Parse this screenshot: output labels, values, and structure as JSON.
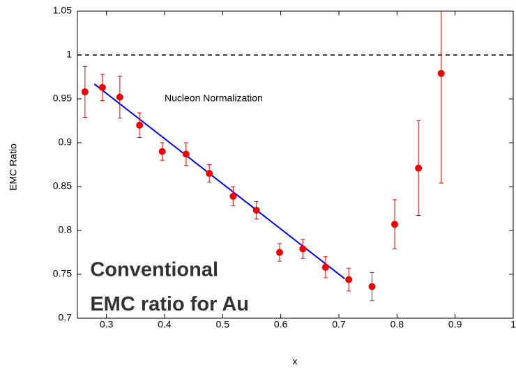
{
  "chart_data": {
    "type": "scatter",
    "x_label": "x",
    "y_label": "EMC Ratio",
    "x": [
      0.263,
      0.293,
      0.323,
      0.357,
      0.396,
      0.437,
      0.477,
      0.518,
      0.558,
      0.598,
      0.638,
      0.677,
      0.717,
      0.757,
      0.796,
      0.837,
      0.876
    ],
    "values": [
      0.958,
      0.963,
      0.952,
      0.92,
      0.89,
      0.887,
      0.865,
      0.839,
      0.823,
      0.775,
      0.779,
      0.758,
      0.744,
      0.736,
      0.807,
      0.871,
      0.979
    ],
    "errors": [
      0.029,
      0.015,
      0.024,
      0.014,
      0.01,
      0.013,
      0.01,
      0.011,
      0.01,
      0.01,
      0.011,
      0.012,
      0.013,
      0.016,
      0.028,
      0.054,
      0.125
    ],
    "color": "#ee0000",
    "fit": {
      "x": [
        0.279,
        0.71
      ],
      "y": [
        0.967,
        0.745
      ],
      "color": "#0000dd"
    },
    "reference_line": 1,
    "xlim": [
      0.25,
      1
    ],
    "ylim": [
      0.7,
      1.05
    ],
    "xticks": [
      0.3,
      0.4,
      0.5,
      0.6,
      0.7,
      0.8,
      0.9,
      1
    ],
    "yticks": [
      0.7,
      0.75,
      0.8,
      0.85,
      0.9,
      0.95,
      1,
      1.05
    ],
    "annotations": [
      {
        "text": "Nucleon Normalization",
        "x": 0.4,
        "y": 0.95
      },
      {
        "text": "Conventional",
        "x": 0.272,
        "y": 0.754
      },
      {
        "text": "EMC ratio for Au",
        "x": 0.272,
        "y": 0.715
      }
    ]
  }
}
